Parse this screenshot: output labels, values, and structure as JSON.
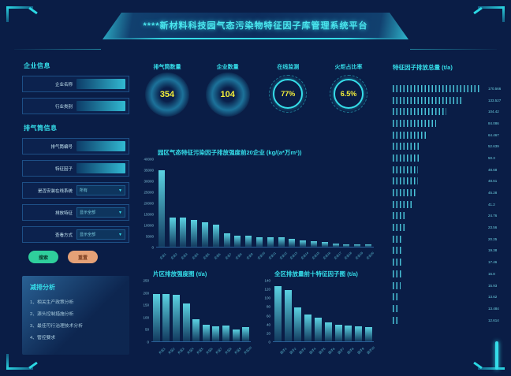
{
  "header": {
    "title": "****新材料科技园气态污染物特征因子库管理系统平台"
  },
  "colors": {
    "background": "#0a1d46",
    "accent_cyan": "#35dde9",
    "value_yellow": "#f2ee3b",
    "button_green": "#2fcf9c",
    "button_orange": "#e5a177",
    "bar_teal_top": "#5bd2e2",
    "bar_teal_bottom": "#123a5f"
  },
  "sidebar": {
    "enterprise_section_title": "企业信息",
    "stack_section_title": "排气筒信息",
    "enterprise_fields": [
      {
        "name": "enterprise-name",
        "label": "企业名称",
        "type": "input",
        "value": ""
      },
      {
        "name": "industry-category",
        "label": "行业类别",
        "type": "input",
        "value": ""
      }
    ],
    "stack_fields": [
      {
        "name": "stack-number",
        "label": "排气筒编号",
        "type": "input",
        "value": ""
      },
      {
        "name": "characteristic-factor",
        "label": "特征因子",
        "type": "input",
        "value": ""
      },
      {
        "name": "online-system-installed",
        "label": "是否安装在线系统",
        "type": "select",
        "value": "所有"
      },
      {
        "name": "emission-characteristic",
        "label": "排放特征",
        "type": "select",
        "value": "显示全部"
      },
      {
        "name": "view-mode",
        "label": "查看方式",
        "type": "select",
        "value": "显示全部"
      }
    ],
    "search_label": "搜索",
    "reset_label": "重置",
    "analysis": {
      "title": "减排分析",
      "items": [
        "1、相关生产政策分析",
        "2、源头控制措施分析",
        "3、最佳可行治理技术分析",
        "4、管控要求"
      ]
    }
  },
  "stats": [
    {
      "name": "stack-count",
      "label": "排气筒数量",
      "value": "354",
      "style": "disc"
    },
    {
      "name": "enterprise-count",
      "label": "企业数量",
      "value": "104",
      "style": "disc"
    },
    {
      "name": "online-monitoring",
      "label": "在线监测",
      "value": "77%",
      "style": "ring"
    },
    {
      "name": "torch-ratio",
      "label": "火炬占比率",
      "value": "6.5%",
      "style": "ring"
    }
  ],
  "right_panel": {
    "title": "特征因子排放总量 (t/a)"
  },
  "chart_data": [
    {
      "id": "top20",
      "type": "bar",
      "title": "园区气态特征污染因子排放强度前20企业 (kg/(a*万m²))",
      "ylabel": "kg/(a*万m²)",
      "ylim": [
        0,
        40000
      ],
      "ytick": 5000,
      "grid": false,
      "categories": [
        "企业1",
        "企业2",
        "企业3",
        "企业4",
        "企业5",
        "企业6",
        "企业7",
        "企业8",
        "企业9",
        "企业10",
        "企业11",
        "企业12",
        "企业13",
        "企业14",
        "企业15",
        "企业16",
        "企业17",
        "企业18",
        "企业19",
        "企业20"
      ],
      "values": [
        35000,
        13500,
        13400,
        12200,
        11200,
        10000,
        6200,
        5000,
        4900,
        4500,
        4400,
        4300,
        3600,
        2900,
        2700,
        2200,
        1300,
        1200,
        1100,
        1000
      ]
    },
    {
      "id": "district",
      "type": "bar",
      "title": "片区排放强度图 (t/a)",
      "ylabel": "t/a",
      "ylim": [
        0,
        250
      ],
      "ytick": 50,
      "grid": false,
      "categories": [
        "片区1",
        "片区2",
        "片区3",
        "片区4",
        "片区5",
        "片区6",
        "片区7",
        "片区8",
        "片区9",
        "片区10"
      ],
      "values": [
        195,
        196,
        193,
        157,
        90,
        68,
        63,
        64,
        50,
        60
      ]
    },
    {
      "id": "factors_top10",
      "type": "bar",
      "title": "全区排放量前十特征因子图 (t/a)",
      "ylabel": "t/a",
      "ylim": [
        0,
        140
      ],
      "ytick": 20,
      "grid": false,
      "categories": [
        "因子1",
        "因子2",
        "因子3",
        "因子4",
        "因子5",
        "因子6",
        "因子7",
        "因子8",
        "因子9",
        "因子10"
      ],
      "values": [
        128,
        118,
        78,
        62,
        55,
        43,
        38,
        36,
        34,
        33
      ]
    },
    {
      "id": "factor_totals",
      "type": "bar",
      "orientation": "horizontal",
      "title": "特征因子排放总量 (t/a)",
      "xlim": [
        0,
        180
      ],
      "grid": false,
      "values": [
        170.566,
        133.527,
        104.42,
        84.086,
        64.467,
        52.639,
        50.3,
        48.68,
        48.61,
        45.28,
        41.2,
        24.76,
        23.56,
        20.25,
        19.38,
        17.46,
        16.8,
        15.93,
        13.62,
        13.484,
        12.614
      ]
    }
  ]
}
